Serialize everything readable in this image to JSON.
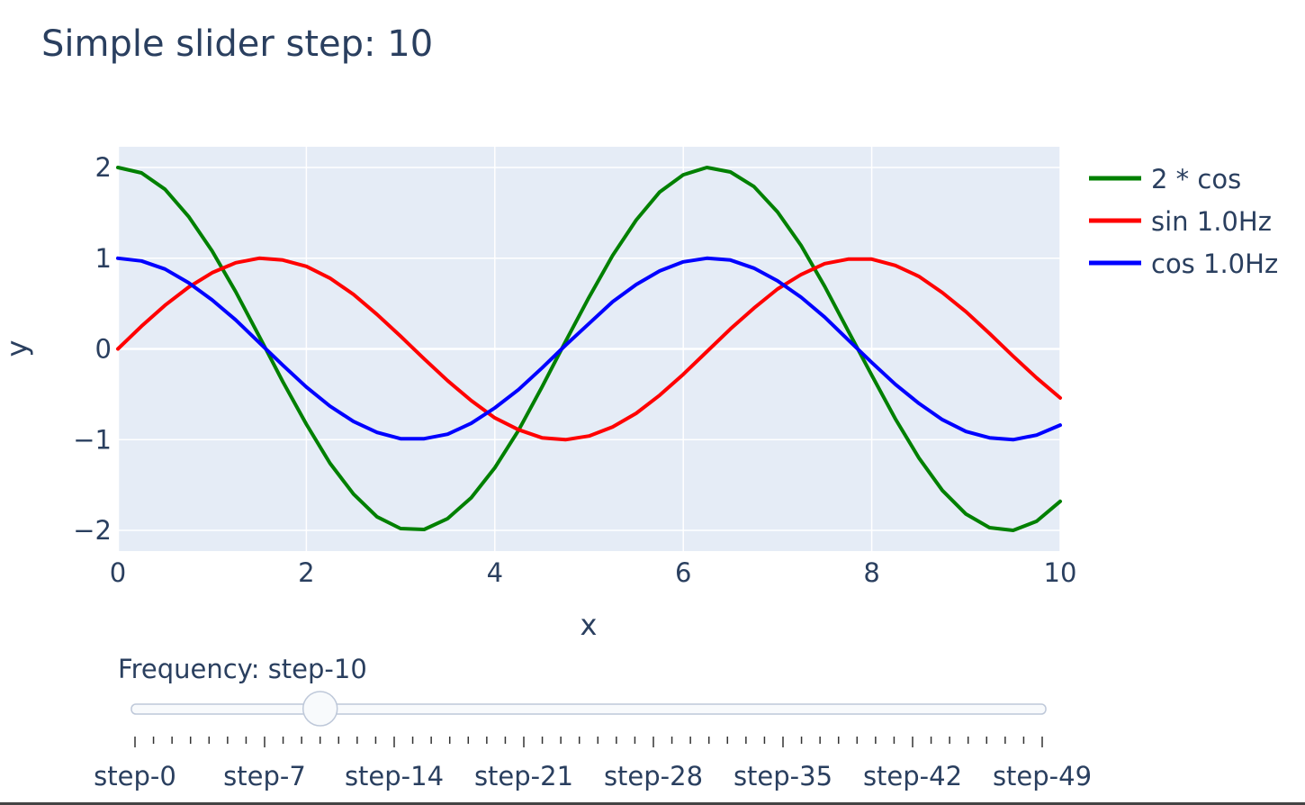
{
  "chart_data": {
    "type": "line",
    "title": "Simple slider step: 10",
    "xlabel": "x",
    "ylabel": "y",
    "xlim": [
      0,
      10
    ],
    "ylim": [
      -2.2,
      2.2
    ],
    "x_ticks": [
      0,
      2,
      4,
      6,
      8,
      10
    ],
    "x_tick_labels": [
      "0",
      "2",
      "4",
      "6",
      "8",
      "10"
    ],
    "y_ticks": [
      2,
      1,
      0,
      -1,
      -2
    ],
    "y_tick_labels": [
      "2",
      "1",
      "0",
      "−1",
      "−2"
    ],
    "grid": true,
    "legend_position": "right",
    "series": [
      {
        "name": "2 * cos",
        "color": "#008000",
        "x": [
          0,
          0.25,
          0.5,
          0.75,
          1,
          1.25,
          1.5,
          1.75,
          2,
          2.25,
          2.5,
          2.75,
          3,
          3.25,
          3.5,
          3.75,
          4,
          4.25,
          4.5,
          4.75,
          5,
          5.25,
          5.5,
          5.75,
          6,
          6.25,
          6.5,
          6.75,
          7,
          7.25,
          7.5,
          7.75,
          8,
          8.25,
          8.5,
          8.75,
          9,
          9.25,
          9.5,
          9.75,
          10
        ],
        "y": [
          2,
          1.94,
          1.76,
          1.46,
          1.08,
          0.63,
          0.14,
          -0.36,
          -0.83,
          -1.26,
          -1.6,
          -1.85,
          -1.98,
          -1.99,
          -1.87,
          -1.64,
          -1.31,
          -0.9,
          -0.42,
          0.08,
          0.57,
          1.03,
          1.42,
          1.73,
          1.92,
          2,
          1.95,
          1.79,
          1.51,
          1.14,
          0.69,
          0.2,
          -0.29,
          -0.77,
          -1.2,
          -1.56,
          -1.82,
          -1.97,
          -2,
          -1.9,
          -1.68
        ]
      },
      {
        "name": "sin 1.0Hz",
        "color": "#ff0000",
        "x": [
          0,
          0.25,
          0.5,
          0.75,
          1,
          1.25,
          1.5,
          1.75,
          2,
          2.25,
          2.5,
          2.75,
          3,
          3.25,
          3.5,
          3.75,
          4,
          4.25,
          4.5,
          4.75,
          5,
          5.25,
          5.5,
          5.75,
          6,
          6.25,
          6.5,
          6.75,
          7,
          7.25,
          7.5,
          7.75,
          8,
          8.25,
          8.5,
          8.75,
          9,
          9.25,
          9.5,
          9.75,
          10
        ],
        "y": [
          0,
          0.25,
          0.48,
          0.68,
          0.84,
          0.95,
          1,
          0.98,
          0.91,
          0.78,
          0.6,
          0.38,
          0.14,
          -0.11,
          -0.35,
          -0.57,
          -0.76,
          -0.89,
          -0.98,
          -1,
          -0.96,
          -0.86,
          -0.71,
          -0.51,
          -0.28,
          -0.03,
          0.22,
          0.45,
          0.66,
          0.82,
          0.94,
          0.99,
          0.99,
          0.92,
          0.8,
          0.62,
          0.41,
          0.17,
          -0.08,
          -0.32,
          -0.54
        ]
      },
      {
        "name": "cos 1.0Hz",
        "color": "#0000ff",
        "x": [
          0,
          0.25,
          0.5,
          0.75,
          1,
          1.25,
          1.5,
          1.75,
          2,
          2.25,
          2.5,
          2.75,
          3,
          3.25,
          3.5,
          3.75,
          4,
          4.25,
          4.5,
          4.75,
          5,
          5.25,
          5.5,
          5.75,
          6,
          6.25,
          6.5,
          6.75,
          7,
          7.25,
          7.5,
          7.75,
          8,
          8.25,
          8.5,
          8.75,
          9,
          9.25,
          9.5,
          9.75,
          10
        ],
        "y": [
          1,
          0.97,
          0.88,
          0.73,
          0.54,
          0.32,
          0.07,
          -0.18,
          -0.42,
          -0.63,
          -0.8,
          -0.92,
          -0.99,
          -0.99,
          -0.94,
          -0.82,
          -0.65,
          -0.45,
          -0.21,
          0.04,
          0.28,
          0.52,
          0.71,
          0.86,
          0.96,
          1,
          0.98,
          0.89,
          0.75,
          0.57,
          0.35,
          0.1,
          -0.15,
          -0.39,
          -0.6,
          -0.78,
          -0.91,
          -0.98,
          -1,
          -0.95,
          -0.84
        ]
      }
    ]
  },
  "slider": {
    "label": "Frequency: step-10",
    "active_step": 10,
    "step_count": 50,
    "labeled_steps": [
      0,
      7,
      14,
      21,
      28,
      35,
      42,
      49
    ],
    "step_labels": [
      "step-0",
      "step-7",
      "step-14",
      "step-21",
      "step-28",
      "step-35",
      "step-42",
      "step-49"
    ]
  }
}
